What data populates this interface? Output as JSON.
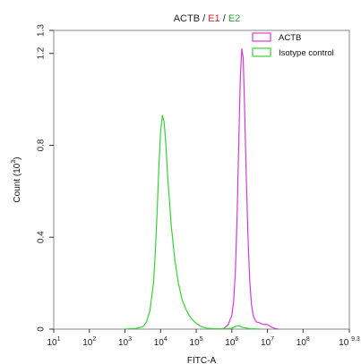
{
  "title_parts": [
    {
      "text": "ACTB",
      "color": "#222222"
    },
    {
      "text": " / ",
      "color": "#222222"
    },
    {
      "text": "E1",
      "color": "#d7262c"
    },
    {
      "text": " / ",
      "color": "#222222"
    },
    {
      "text": "E2",
      "color": "#2e9f3a"
    }
  ],
  "chart_data": {
    "type": "line",
    "title": "ACTB / E1 / E2",
    "xlabel": "FITC-A",
    "ylabel": "Count (10^3)",
    "ylabel_parts": {
      "pre": "Count (10",
      "sup": "3",
      "post": ")"
    },
    "x_scale": "log10",
    "xlim_exponent": [
      1,
      9.3
    ],
    "ylim": [
      0,
      1.3
    ],
    "x_ticks": [
      {
        "base": "10",
        "exp": "1",
        "value": 1
      },
      {
        "base": "10",
        "exp": "2",
        "value": 2
      },
      {
        "base": "10",
        "exp": "3",
        "value": 3
      },
      {
        "base": "10",
        "exp": "4",
        "value": 4
      },
      {
        "base": "10",
        "exp": "5",
        "value": 5
      },
      {
        "base": "10",
        "exp": "6",
        "value": 6
      },
      {
        "base": "10",
        "exp": "7",
        "value": 7
      },
      {
        "base": "10",
        "exp": "8",
        "value": 8
      },
      {
        "base": "10 ",
        "exp": "9.3",
        "value": 9.3
      }
    ],
    "y_ticks": [
      {
        "label": "0",
        "value": 0
      },
      {
        "label": "0.4",
        "value": 0.4
      },
      {
        "label": "0.8",
        "value": 0.8
      },
      {
        "label": "1.2",
        "value": 1.2
      },
      {
        "label": "1.3",
        "value": 1.3
      }
    ],
    "grid": false,
    "legend_position": "top-right",
    "series": [
      {
        "name": "ACTB",
        "color": "#d63ad6",
        "x_log10": [
          5.7,
          5.8,
          5.9,
          6.0,
          6.05,
          6.1,
          6.15,
          6.2,
          6.24,
          6.28,
          6.32,
          6.36,
          6.4,
          6.45,
          6.5,
          6.55,
          6.6,
          6.65,
          6.7,
          6.75,
          6.8,
          6.9,
          7.0,
          7.1,
          7.2,
          7.3
        ],
        "y": [
          0,
          0.005,
          0.02,
          0.06,
          0.12,
          0.25,
          0.5,
          0.85,
          1.1,
          1.22,
          1.18,
          0.95,
          0.7,
          0.42,
          0.22,
          0.11,
          0.06,
          0.04,
          0.03,
          0.03,
          0.025,
          0.02,
          0.02,
          0.01,
          0.003,
          0
        ]
      },
      {
        "name": "Isotype control",
        "color": "#36d236",
        "x_log10": [
          3.0,
          3.3,
          3.5,
          3.6,
          3.7,
          3.8,
          3.85,
          3.9,
          3.95,
          4.0,
          4.05,
          4.1,
          4.15,
          4.2,
          4.3,
          4.4,
          4.5,
          4.6,
          4.7,
          4.8,
          4.9,
          5.0,
          5.1,
          5.2,
          5.3,
          5.5,
          5.8,
          6.0,
          6.1,
          6.2,
          6.3,
          6.5,
          6.8
        ],
        "y": [
          0,
          0.003,
          0.01,
          0.03,
          0.08,
          0.2,
          0.33,
          0.5,
          0.7,
          0.86,
          0.93,
          0.9,
          0.8,
          0.66,
          0.45,
          0.3,
          0.2,
          0.13,
          0.09,
          0.06,
          0.04,
          0.025,
          0.015,
          0.008,
          0.004,
          0.002,
          0.001,
          0.004,
          0.012,
          0.015,
          0.008,
          0.002,
          0
        ]
      }
    ]
  }
}
